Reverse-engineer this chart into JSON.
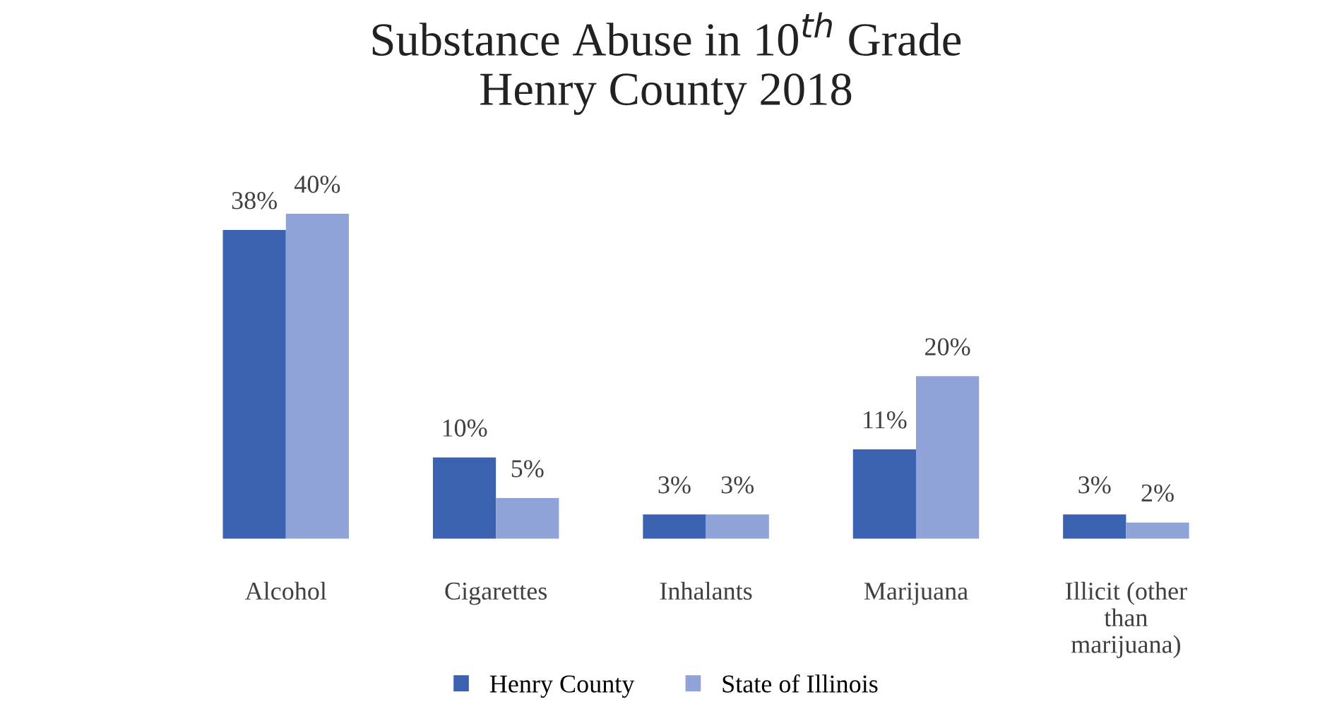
{
  "chart_data": {
    "type": "bar",
    "title": "Substance Abuse in 10$^{th}$ Grade\nHenry County 2018",
    "categories": [
      "Alcohol",
      "Cigarettes",
      "Inhalants",
      "Marijuana",
      "Illicit (other\nthan\nmarijuana)"
    ],
    "series": [
      {
        "name": "Henry County",
        "color": "#3a62b0",
        "values": [
          38,
          10,
          3,
          11,
          3
        ],
        "value_labels": [
          "38%",
          "10%",
          "3%",
          "11%",
          "3%"
        ]
      },
      {
        "name": "State of Illinois",
        "color": "#8fa3d8",
        "values": [
          40,
          5,
          3,
          20,
          2
        ],
        "value_labels": [
          "40%",
          "5%",
          "3%",
          "20%",
          "2%"
        ]
      }
    ],
    "legend": "bottom",
    "grid": false
  }
}
